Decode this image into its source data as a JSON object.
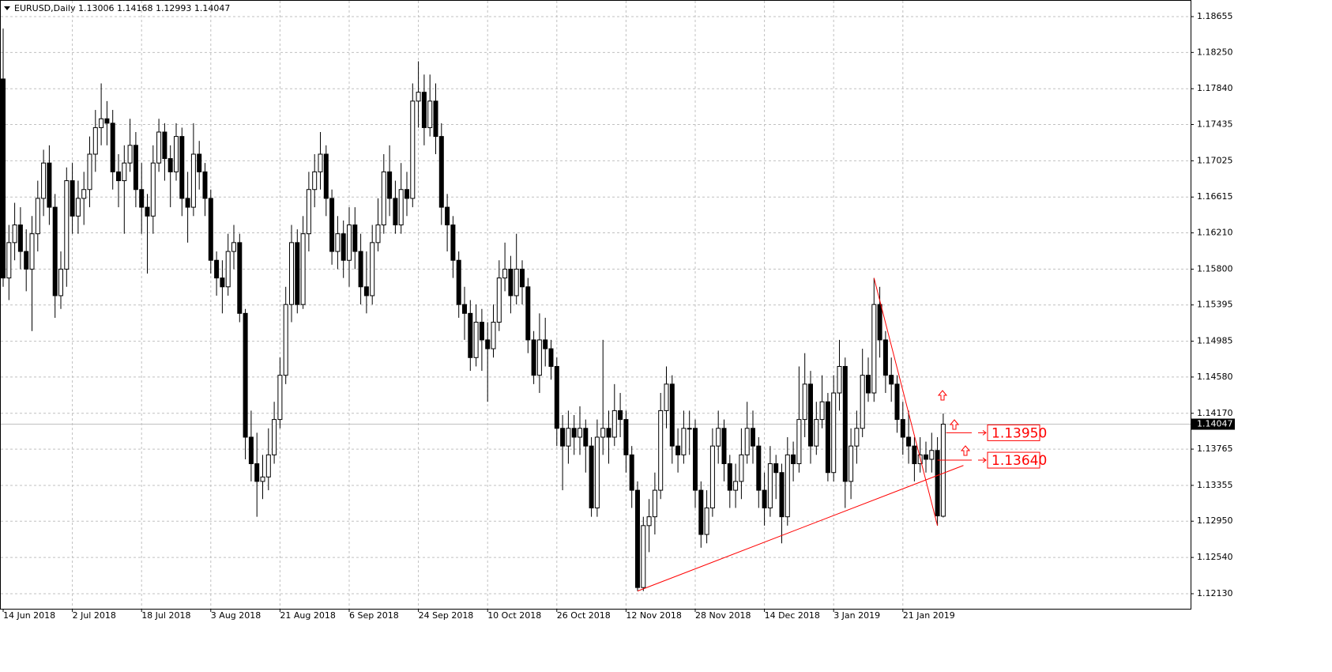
{
  "chart_data": {
    "type": "candlestick",
    "title": "EURUSD,Daily  1.13006 1.14168 1.12993 1.14047",
    "ylim": [
      1.1196,
      1.18843
    ],
    "yticks": [
      1.18655,
      {
        "value": 1.1825,
        "label": "1.18250"
      },
      {
        "value": 1.1784,
        "label": "1.17840"
      },
      1.17435,
      1.17025,
      1.16615,
      {
        "value": 1.1621,
        "label": "1.16210"
      },
      {
        "value": 1.158,
        "label": "1.15800"
      },
      1.15395,
      1.14985,
      {
        "value": 1.1458,
        "label": "1.14580"
      },
      {
        "value": 1.1417,
        "label": "1.14170"
      },
      1.13765,
      1.13355,
      {
        "value": 1.1295,
        "label": "1.12950"
      },
      {
        "value": 1.1254,
        "label": "1.12540"
      },
      {
        "value": 1.1213,
        "label": "1.12130"
      }
    ],
    "grid": true,
    "up_color": "#ffffff",
    "down_color": "#000000",
    "line_color": "#000000",
    "annotation_color": "#ff0000",
    "categories": [
      "14 Jun 2018",
      null,
      null,
      null,
      null,
      null,
      null,
      null,
      null,
      null,
      null,
      null,
      "2 Jul 2018",
      null,
      null,
      null,
      null,
      null,
      null,
      null,
      null,
      null,
      null,
      null,
      "18 Jul 2018",
      null,
      null,
      null,
      null,
      null,
      null,
      null,
      null,
      null,
      null,
      null,
      "3 Aug 2018",
      null,
      null,
      null,
      null,
      null,
      null,
      null,
      null,
      null,
      null,
      null,
      "21 Aug 2018",
      null,
      null,
      null,
      null,
      null,
      null,
      null,
      null,
      null,
      null,
      null,
      "6 Sep 2018",
      null,
      null,
      null,
      null,
      null,
      null,
      null,
      null,
      null,
      null,
      null,
      "24 Sep 2018",
      null,
      null,
      null,
      null,
      null,
      null,
      null,
      null,
      null,
      null,
      null,
      "10 Oct 2018",
      null,
      null,
      null,
      null,
      null,
      null,
      null,
      null,
      null,
      null,
      null,
      "26 Oct 2018",
      null,
      null,
      null,
      null,
      null,
      null,
      null,
      null,
      null,
      null,
      null,
      "12 Nov 2018",
      null,
      null,
      null,
      null,
      null,
      null,
      null,
      null,
      null,
      null,
      null,
      "28 Nov 2018",
      null,
      null,
      null,
      null,
      null,
      null,
      null,
      null,
      null,
      null,
      null,
      "14 Dec 2018",
      null,
      null,
      null,
      null,
      null,
      null,
      null,
      null,
      null,
      null,
      null,
      "3 Jan 2019",
      null,
      null,
      null,
      null,
      null,
      null,
      null,
      null,
      null,
      null,
      null,
      "21 Jan 2019",
      null,
      null,
      null,
      null,
      null,
      null,
      null
    ],
    "ohlc": [
      [
        1.1795,
        1.1852,
        1.156,
        1.157
      ],
      [
        1.157,
        1.163,
        1.1545,
        1.161
      ],
      [
        1.161,
        1.1655,
        1.159,
        1.163
      ],
      [
        1.163,
        1.165,
        1.158,
        1.16
      ],
      [
        1.16,
        1.1625,
        1.1555,
        1.158
      ],
      [
        1.158,
        1.164,
        1.151,
        1.162
      ],
      [
        1.162,
        1.168,
        1.16,
        1.166
      ],
      [
        1.166,
        1.1715,
        1.164,
        1.17
      ],
      [
        1.17,
        1.172,
        1.163,
        1.165
      ],
      [
        1.165,
        1.1665,
        1.1525,
        1.155
      ],
      [
        1.155,
        1.16,
        1.1535,
        1.158
      ],
      [
        1.158,
        1.1695,
        1.156,
        1.168
      ],
      [
        1.168,
        1.17,
        1.162,
        1.164
      ],
      [
        1.164,
        1.168,
        1.162,
        1.166
      ],
      [
        1.166,
        1.169,
        1.163,
        1.167
      ],
      [
        1.167,
        1.173,
        1.165,
        1.171
      ],
      [
        1.171,
        1.176,
        1.169,
        1.174
      ],
      [
        1.174,
        1.179,
        1.172,
        1.175
      ],
      [
        1.175,
        1.177,
        1.172,
        1.1745
      ],
      [
        1.1745,
        1.176,
        1.167,
        1.169
      ],
      [
        1.169,
        1.171,
        1.165,
        1.168
      ],
      [
        1.168,
        1.172,
        1.162,
        1.17
      ],
      [
        1.17,
        1.175,
        1.169,
        1.172
      ],
      [
        1.172,
        1.1735,
        1.165,
        1.167
      ],
      [
        1.167,
        1.17,
        1.162,
        1.165
      ],
      [
        1.165,
        1.1665,
        1.1575,
        1.164
      ],
      [
        1.164,
        1.172,
        1.162,
        1.17
      ],
      [
        1.17,
        1.175,
        1.169,
        1.1735
      ],
      [
        1.1735,
        1.1745,
        1.168,
        1.1705
      ],
      [
        1.1705,
        1.172,
        1.165,
        1.169
      ],
      [
        1.169,
        1.1745,
        1.168,
        1.173
      ],
      [
        1.173,
        1.174,
        1.164,
        1.166
      ],
      [
        1.166,
        1.169,
        1.161,
        1.165
      ],
      [
        1.165,
        1.1745,
        1.164,
        1.171
      ],
      [
        1.171,
        1.1725,
        1.167,
        1.169
      ],
      [
        1.169,
        1.17,
        1.164,
        1.166
      ],
      [
        1.166,
        1.167,
        1.1575,
        1.159
      ],
      [
        1.159,
        1.16,
        1.155,
        1.157
      ],
      [
        1.157,
        1.159,
        1.153,
        1.156
      ],
      [
        1.156,
        1.162,
        1.155,
        1.16
      ],
      [
        1.16,
        1.163,
        1.158,
        1.161
      ],
      [
        1.161,
        1.162,
        1.152,
        1.153
      ],
      [
        1.153,
        1.1535,
        1.1365,
        1.139
      ],
      [
        1.139,
        1.142,
        1.134,
        1.136
      ],
      [
        1.136,
        1.1395,
        1.13,
        1.134
      ],
      [
        1.134,
        1.137,
        1.132,
        1.1345
      ],
      [
        1.1345,
        1.14,
        1.133,
        1.137
      ],
      [
        1.137,
        1.143,
        1.136,
        1.141
      ],
      [
        1.141,
        1.148,
        1.14,
        1.146
      ],
      [
        1.146,
        1.156,
        1.145,
        1.154
      ],
      [
        1.154,
        1.163,
        1.152,
        1.161
      ],
      [
        1.161,
        1.1625,
        1.153,
        1.154
      ],
      [
        1.154,
        1.164,
        1.1535,
        1.162
      ],
      [
        1.162,
        1.169,
        1.16,
        1.167
      ],
      [
        1.167,
        1.171,
        1.165,
        1.169
      ],
      [
        1.169,
        1.1735,
        1.167,
        1.171
      ],
      [
        1.171,
        1.172,
        1.164,
        1.166
      ],
      [
        1.166,
        1.167,
        1.1585,
        1.16
      ],
      [
        1.16,
        1.164,
        1.158,
        1.162
      ],
      [
        1.162,
        1.1635,
        1.157,
        1.159
      ],
      [
        1.159,
        1.165,
        1.156,
        1.163
      ],
      [
        1.163,
        1.165,
        1.158,
        1.16
      ],
      [
        1.16,
        1.162,
        1.154,
        1.156
      ],
      [
        1.156,
        1.16,
        1.153,
        1.155
      ],
      [
        1.155,
        1.163,
        1.154,
        1.161
      ],
      [
        1.161,
        1.166,
        1.16,
        1.163
      ],
      [
        1.163,
        1.171,
        1.162,
        1.169
      ],
      [
        1.169,
        1.172,
        1.164,
        1.166
      ],
      [
        1.166,
        1.168,
        1.162,
        1.163
      ],
      [
        1.163,
        1.17,
        1.162,
        1.167
      ],
      [
        1.167,
        1.169,
        1.164,
        1.166
      ],
      [
        1.166,
        1.179,
        1.165,
        1.177
      ],
      [
        1.177,
        1.1815,
        1.174,
        1.178
      ],
      [
        1.178,
        1.18,
        1.172,
        1.174
      ],
      [
        1.174,
        1.18,
        1.173,
        1.177
      ],
      [
        1.177,
        1.179,
        1.171,
        1.173
      ],
      [
        1.173,
        1.1745,
        1.163,
        1.165
      ],
      [
        1.165,
        1.1665,
        1.16,
        1.163
      ],
      [
        1.163,
        1.164,
        1.157,
        1.159
      ],
      [
        1.159,
        1.16,
        1.1525,
        1.154
      ],
      [
        1.154,
        1.156,
        1.15,
        1.153
      ],
      [
        1.153,
        1.1545,
        1.1465,
        1.148
      ],
      [
        1.148,
        1.154,
        1.147,
        1.152
      ],
      [
        1.152,
        1.1535,
        1.1465,
        1.15
      ],
      [
        1.15,
        1.152,
        1.143,
        1.149
      ],
      [
        1.149,
        1.154,
        1.148,
        1.152
      ],
      [
        1.152,
        1.159,
        1.151,
        1.157
      ],
      [
        1.157,
        1.161,
        1.1555,
        1.158
      ],
      [
        1.158,
        1.1595,
        1.153,
        1.155
      ],
      [
        1.155,
        1.162,
        1.154,
        1.158
      ],
      [
        1.158,
        1.159,
        1.154,
        1.156
      ],
      [
        1.156,
        1.157,
        1.1485,
        1.15
      ],
      [
        1.15,
        1.151,
        1.145,
        1.146
      ],
      [
        1.146,
        1.153,
        1.144,
        1.15
      ],
      [
        1.15,
        1.1525,
        1.147,
        1.149
      ],
      [
        1.149,
        1.15,
        1.1455,
        1.147
      ],
      [
        1.147,
        1.148,
        1.138,
        1.14
      ],
      [
        1.14,
        1.1415,
        1.133,
        1.138
      ],
      [
        1.138,
        1.142,
        1.136,
        1.14
      ],
      [
        1.14,
        1.1415,
        1.137,
        1.139
      ],
      [
        1.139,
        1.1425,
        1.137,
        1.14
      ],
      [
        1.14,
        1.141,
        1.135,
        1.138
      ],
      [
        1.138,
        1.139,
        1.13,
        1.131
      ],
      [
        1.131,
        1.141,
        1.13,
        1.139
      ],
      [
        1.139,
        1.15,
        1.137,
        1.14
      ],
      [
        1.14,
        1.142,
        1.136,
        1.139
      ],
      [
        1.139,
        1.145,
        1.138,
        1.142
      ],
      [
        1.142,
        1.144,
        1.139,
        1.141
      ],
      [
        1.141,
        1.142,
        1.135,
        1.137
      ],
      [
        1.137,
        1.138,
        1.131,
        1.133
      ],
      [
        1.133,
        1.134,
        1.1216,
        1.122
      ],
      [
        1.122,
        1.13,
        1.1216,
        1.129
      ],
      [
        1.129,
        1.132,
        1.126,
        1.13
      ],
      [
        1.13,
        1.135,
        1.128,
        1.133
      ],
      [
        1.133,
        1.144,
        1.132,
        1.142
      ],
      [
        1.142,
        1.147,
        1.14,
        1.145
      ],
      [
        1.145,
        1.146,
        1.136,
        1.138
      ],
      [
        1.138,
        1.14,
        1.135,
        1.137
      ],
      [
        1.137,
        1.142,
        1.136,
        1.14
      ],
      [
        1.14,
        1.142,
        1.137,
        1.14
      ],
      [
        1.14,
        1.141,
        1.131,
        1.133
      ],
      [
        1.133,
        1.134,
        1.1265,
        1.128
      ],
      [
        1.128,
        1.133,
        1.127,
        1.131
      ],
      [
        1.131,
        1.14,
        1.13,
        1.138
      ],
      [
        1.138,
        1.142,
        1.136,
        1.14
      ],
      [
        1.14,
        1.141,
        1.134,
        1.136
      ],
      [
        1.136,
        1.137,
        1.131,
        1.133
      ],
      [
        1.133,
        1.136,
        1.131,
        1.134
      ],
      [
        1.134,
        1.14,
        1.132,
        1.137
      ],
      [
        1.137,
        1.143,
        1.136,
        1.14
      ],
      [
        1.14,
        1.142,
        1.136,
        1.138
      ],
      [
        1.138,
        1.139,
        1.131,
        1.133
      ],
      [
        1.133,
        1.135,
        1.129,
        1.131
      ],
      [
        1.131,
        1.138,
        1.13,
        1.136
      ],
      [
        1.136,
        1.137,
        1.132,
        1.135
      ],
      [
        1.135,
        1.136,
        1.127,
        1.13
      ],
      [
        1.13,
        1.139,
        1.129,
        1.137
      ],
      [
        1.137,
        1.1385,
        1.134,
        1.136
      ],
      [
        1.136,
        1.147,
        1.135,
        1.141
      ],
      [
        1.141,
        1.1485,
        1.139,
        1.145
      ],
      [
        1.145,
        1.1465,
        1.136,
        1.138
      ],
      [
        1.138,
        1.143,
        1.137,
        1.141
      ],
      [
        1.141,
        1.146,
        1.14,
        1.143
      ],
      [
        1.143,
        1.144,
        1.134,
        1.135
      ],
      [
        1.135,
        1.146,
        1.134,
        1.144
      ],
      [
        1.144,
        1.15,
        1.142,
        1.147
      ],
      [
        1.147,
        1.148,
        1.131,
        1.134
      ],
      [
        1.134,
        1.14,
        1.132,
        1.138
      ],
      [
        1.138,
        1.142,
        1.136,
        1.14
      ],
      [
        1.14,
        1.149,
        1.139,
        1.146
      ],
      [
        1.146,
        1.148,
        1.143,
        1.144
      ],
      [
        1.144,
        1.157,
        1.143,
        1.154
      ],
      [
        1.154,
        1.156,
        1.148,
        1.15
      ],
      [
        1.15,
        1.151,
        1.144,
        1.146
      ],
      [
        1.146,
        1.148,
        1.143,
        1.145
      ],
      [
        1.145,
        1.146,
        1.1395,
        1.141
      ],
      [
        1.141,
        1.143,
        1.137,
        1.139
      ],
      [
        1.139,
        1.142,
        1.136,
        1.138
      ],
      [
        1.138,
        1.139,
        1.134,
        1.136
      ],
      [
        1.136,
        1.139,
        1.135,
        1.137
      ],
      [
        1.137,
        1.1385,
        1.135,
        1.1365
      ],
      [
        1.1365,
        1.1395,
        1.135,
        1.1375
      ],
      [
        1.1375,
        1.139,
        1.129,
        1.1301
      ],
      [
        1.13006,
        1.14168,
        1.12993,
        1.14047
      ]
    ],
    "trendlines": [
      [
        [
          110,
          1.1216
        ],
        [
          166.5,
          1.1358
        ]
      ],
      [
        [
          151,
          1.157
        ],
        [
          162,
          1.129
        ]
      ]
    ],
    "levels": [
      {
        "value": 1.1395,
        "label": "1.13950"
      },
      {
        "value": 1.1364,
        "label": "1.13640"
      }
    ]
  }
}
